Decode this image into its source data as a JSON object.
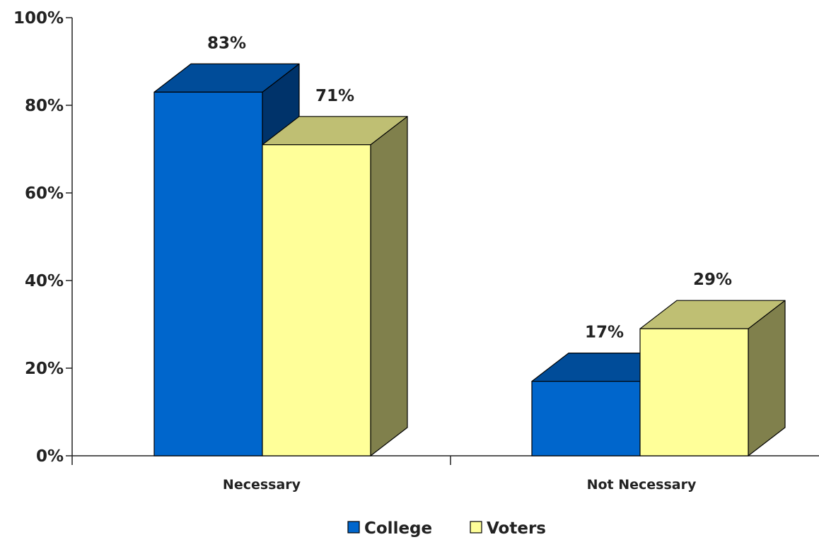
{
  "chart_data": {
    "type": "bar",
    "categories": [
      "Necessary",
      "Not Necessary"
    ],
    "series": [
      {
        "name": "College",
        "values": [
          83,
          17
        ],
        "data_labels": [
          "83%",
          "17%"
        ]
      },
      {
        "name": "Voters",
        "values": [
          71,
          29
        ],
        "data_labels": [
          "71%",
          "29%"
        ]
      }
    ],
    "ylim": [
      0,
      100
    ],
    "y_ticks": [
      0,
      20,
      40,
      60,
      80,
      100
    ],
    "y_tick_labels": [
      "0%",
      "20%",
      "40%",
      "60%",
      "80%",
      "100%"
    ],
    "legend_position": "bottom",
    "grid": false,
    "three_d": true
  },
  "colors": {
    "College": {
      "front": "#0066CC",
      "top": "#004C99",
      "side": "#00336A"
    },
    "Voters": {
      "front": "#FFFF99",
      "top": "#BFBF73",
      "side": "#80804C"
    },
    "axis": "#222222"
  }
}
